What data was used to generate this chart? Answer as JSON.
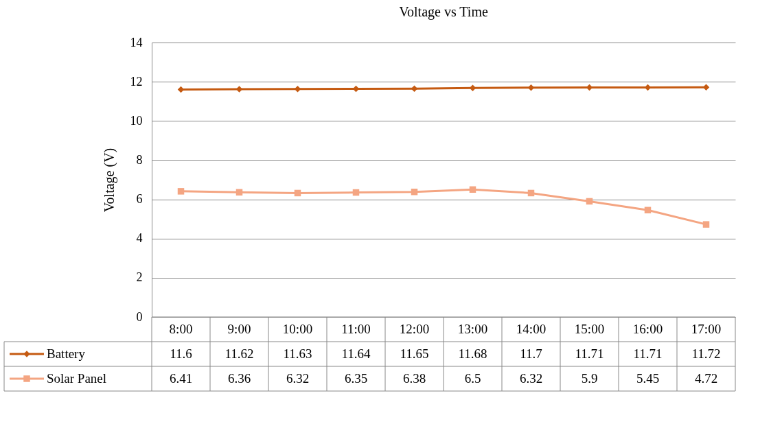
{
  "chart_data": {
    "type": "line",
    "title": "Voltage vs Time",
    "ylabel": "Voltage (V)",
    "categories": [
      "8:00",
      "9:00",
      "10:00",
      "11:00",
      "12:00",
      "13:00",
      "14:00",
      "15:00",
      "16:00",
      "17:00"
    ],
    "series": [
      {
        "name": "Battery",
        "color": "#c55a11",
        "marker": "diamond",
        "values": [
          11.6,
          11.62,
          11.63,
          11.64,
          11.65,
          11.68,
          11.7,
          11.71,
          11.71,
          11.72
        ]
      },
      {
        "name": "Solar Panel",
        "color": "#f4a582",
        "marker": "square",
        "values": [
          6.41,
          6.36,
          6.32,
          6.35,
          6.38,
          6.5,
          6.32,
          5.9,
          5.45,
          4.72
        ]
      }
    ],
    "ylim": [
      0,
      14
    ],
    "yticks": [
      0,
      2,
      4,
      6,
      8,
      10,
      12,
      14
    ],
    "grid": "y",
    "legend": "bottom",
    "data_labels": true
  }
}
